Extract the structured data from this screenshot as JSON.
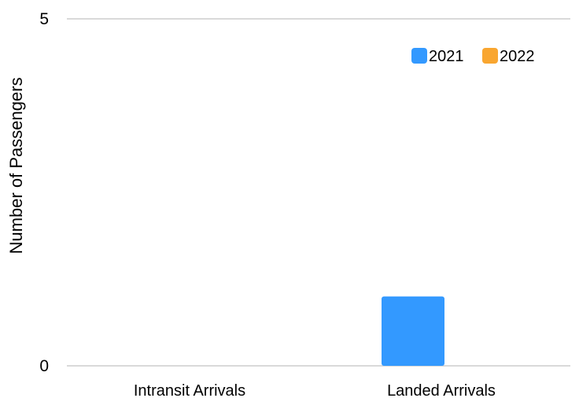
{
  "chart_data": {
    "type": "bar",
    "categories": [
      "Intransit Arrivals",
      "Landed Arrivals"
    ],
    "series": [
      {
        "name": "2021",
        "values": [
          0,
          1
        ],
        "color": "#3399ff"
      },
      {
        "name": "2022",
        "values": [
          0,
          0
        ],
        "color": "#f9a630"
      }
    ],
    "xlabel": "",
    "ylabel": "Number of Passengers",
    "ylim": [
      0,
      5
    ],
    "yticks": [
      0,
      5
    ],
    "grid": true,
    "legend": "top-right"
  }
}
